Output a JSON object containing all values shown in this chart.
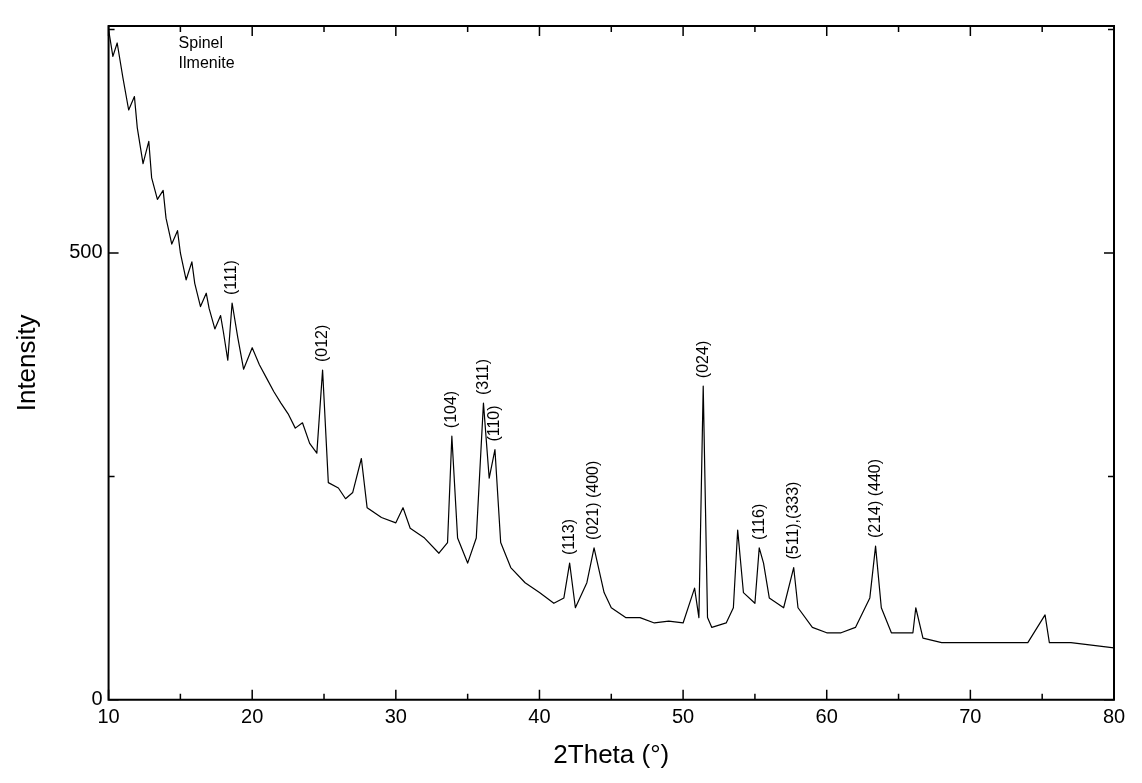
{
  "chart_data": {
    "type": "line",
    "xlabel": "2Theta (°)",
    "ylabel": "Intensity",
    "xlim": [
      10,
      80
    ],
    "ylim": [
      0,
      754
    ],
    "xticks": [
      10,
      {
        "value": 15,
        "label": null
      },
      20,
      {
        "value": 25,
        "label": null
      },
      30,
      {
        "value": 35,
        "label": null
      },
      40,
      {
        "value": 45,
        "label": null
      },
      50,
      {
        "value": 55,
        "label": null
      },
      60,
      {
        "value": 65,
        "label": null
      },
      70,
      {
        "value": 75,
        "label": null
      },
      80
    ],
    "yticks": [
      0,
      {
        "value": 250,
        "label": null
      },
      500,
      {
        "value": 750,
        "label": null
      }
    ],
    "marker": "none",
    "line_style": "solid",
    "series": [
      {
        "color": "#000000",
        "x": [
          10,
          10.3,
          10.6,
          11,
          11.4,
          11.8,
          12,
          12.4,
          12.8,
          13,
          13.4,
          13.8,
          14,
          14.4,
          14.8,
          15,
          15.4,
          15.8,
          16,
          16.4,
          16.8,
          17,
          17.4,
          17.8,
          18,
          18.3,
          18.6,
          19,
          19.4,
          20,
          20.5,
          21,
          21.5,
          22,
          22.5,
          23,
          23.5,
          24,
          24.5,
          24.9,
          25.3,
          26,
          26.5,
          27,
          27.6,
          28,
          29,
          30,
          30.5,
          31,
          32,
          33,
          33.6,
          33.9,
          34.3,
          35,
          35.6,
          36.1,
          36.5,
          36.9,
          37.3,
          38,
          39,
          40,
          41,
          41.7,
          42.1,
          42.5,
          43.3,
          43.8,
          44.5,
          45,
          46,
          47,
          48,
          49,
          50,
          50.8,
          51.1,
          51.4,
          51.7,
          52,
          53,
          53.5,
          53.8,
          54.2,
          55,
          55.3,
          55.6,
          56,
          57,
          57.7,
          58,
          59,
          60,
          61,
          62,
          63,
          63.4,
          63.8,
          64.5,
          65,
          66,
          66.2,
          66.7,
          68,
          70,
          72,
          74,
          75.2,
          75.5,
          77,
          79,
          80
        ],
        "values": [
          750,
          720,
          735,
          696,
          660,
          675,
          640,
          600,
          625,
          584,
          560,
          570,
          539,
          510,
          525,
          500,
          470,
          490,
          466,
          440,
          455,
          438,
          415,
          430,
          411,
          380,
          444,
          405,
          370,
          394,
          375,
          360,
          345,
          332,
          320,
          304,
          310,
          287,
          276,
          369,
          243,
          237,
          225,
          232,
          270,
          215,
          204,
          198,
          215,
          192,
          181,
          164,
          176,
          295,
          181,
          153,
          181,
          332,
          248,
          280,
          176,
          148,
          131,
          120,
          108,
          114,
          153,
          103,
          131,
          170,
          120,
          103,
          92,
          92,
          86,
          88,
          86,
          125,
          92,
          351,
          92,
          81,
          86,
          103,
          190,
          120,
          108,
          170,
          153,
          114,
          103,
          148,
          103,
          81,
          75,
          75,
          81,
          114,
          172,
          103,
          75,
          75,
          75,
          103,
          69,
          64,
          64,
          64,
          64,
          95,
          64,
          64,
          60,
          58
        ]
      }
    ],
    "annotations": [
      "Spinel",
      "Ilmenite",
      {
        "text": "(111)",
        "x": 18.6,
        "y": 444
      },
      {
        "text": "(012)",
        "x": 24.9,
        "y": 369
      },
      {
        "text": "(104)",
        "x": 33.9,
        "y": 295
      },
      {
        "text": "(311)",
        "x": 36.1,
        "y": 332
      },
      {
        "text": "(110)",
        "x": 36.9,
        "y": 280
      },
      {
        "text": "(113)",
        "x": 42.1,
        "y": 153
      },
      {
        "text": "(021) (400)",
        "x": 43.8,
        "y": 170
      },
      {
        "text": "(024)",
        "x": 51.4,
        "y": 351
      },
      {
        "text": "(116)",
        "x": 55.3,
        "y": 170
      },
      {
        "text": "(511),(333)",
        "x": 57.7,
        "y": 148
      },
      {
        "text": "(214) (440)",
        "x": 63.4,
        "y": 172
      }
    ]
  }
}
